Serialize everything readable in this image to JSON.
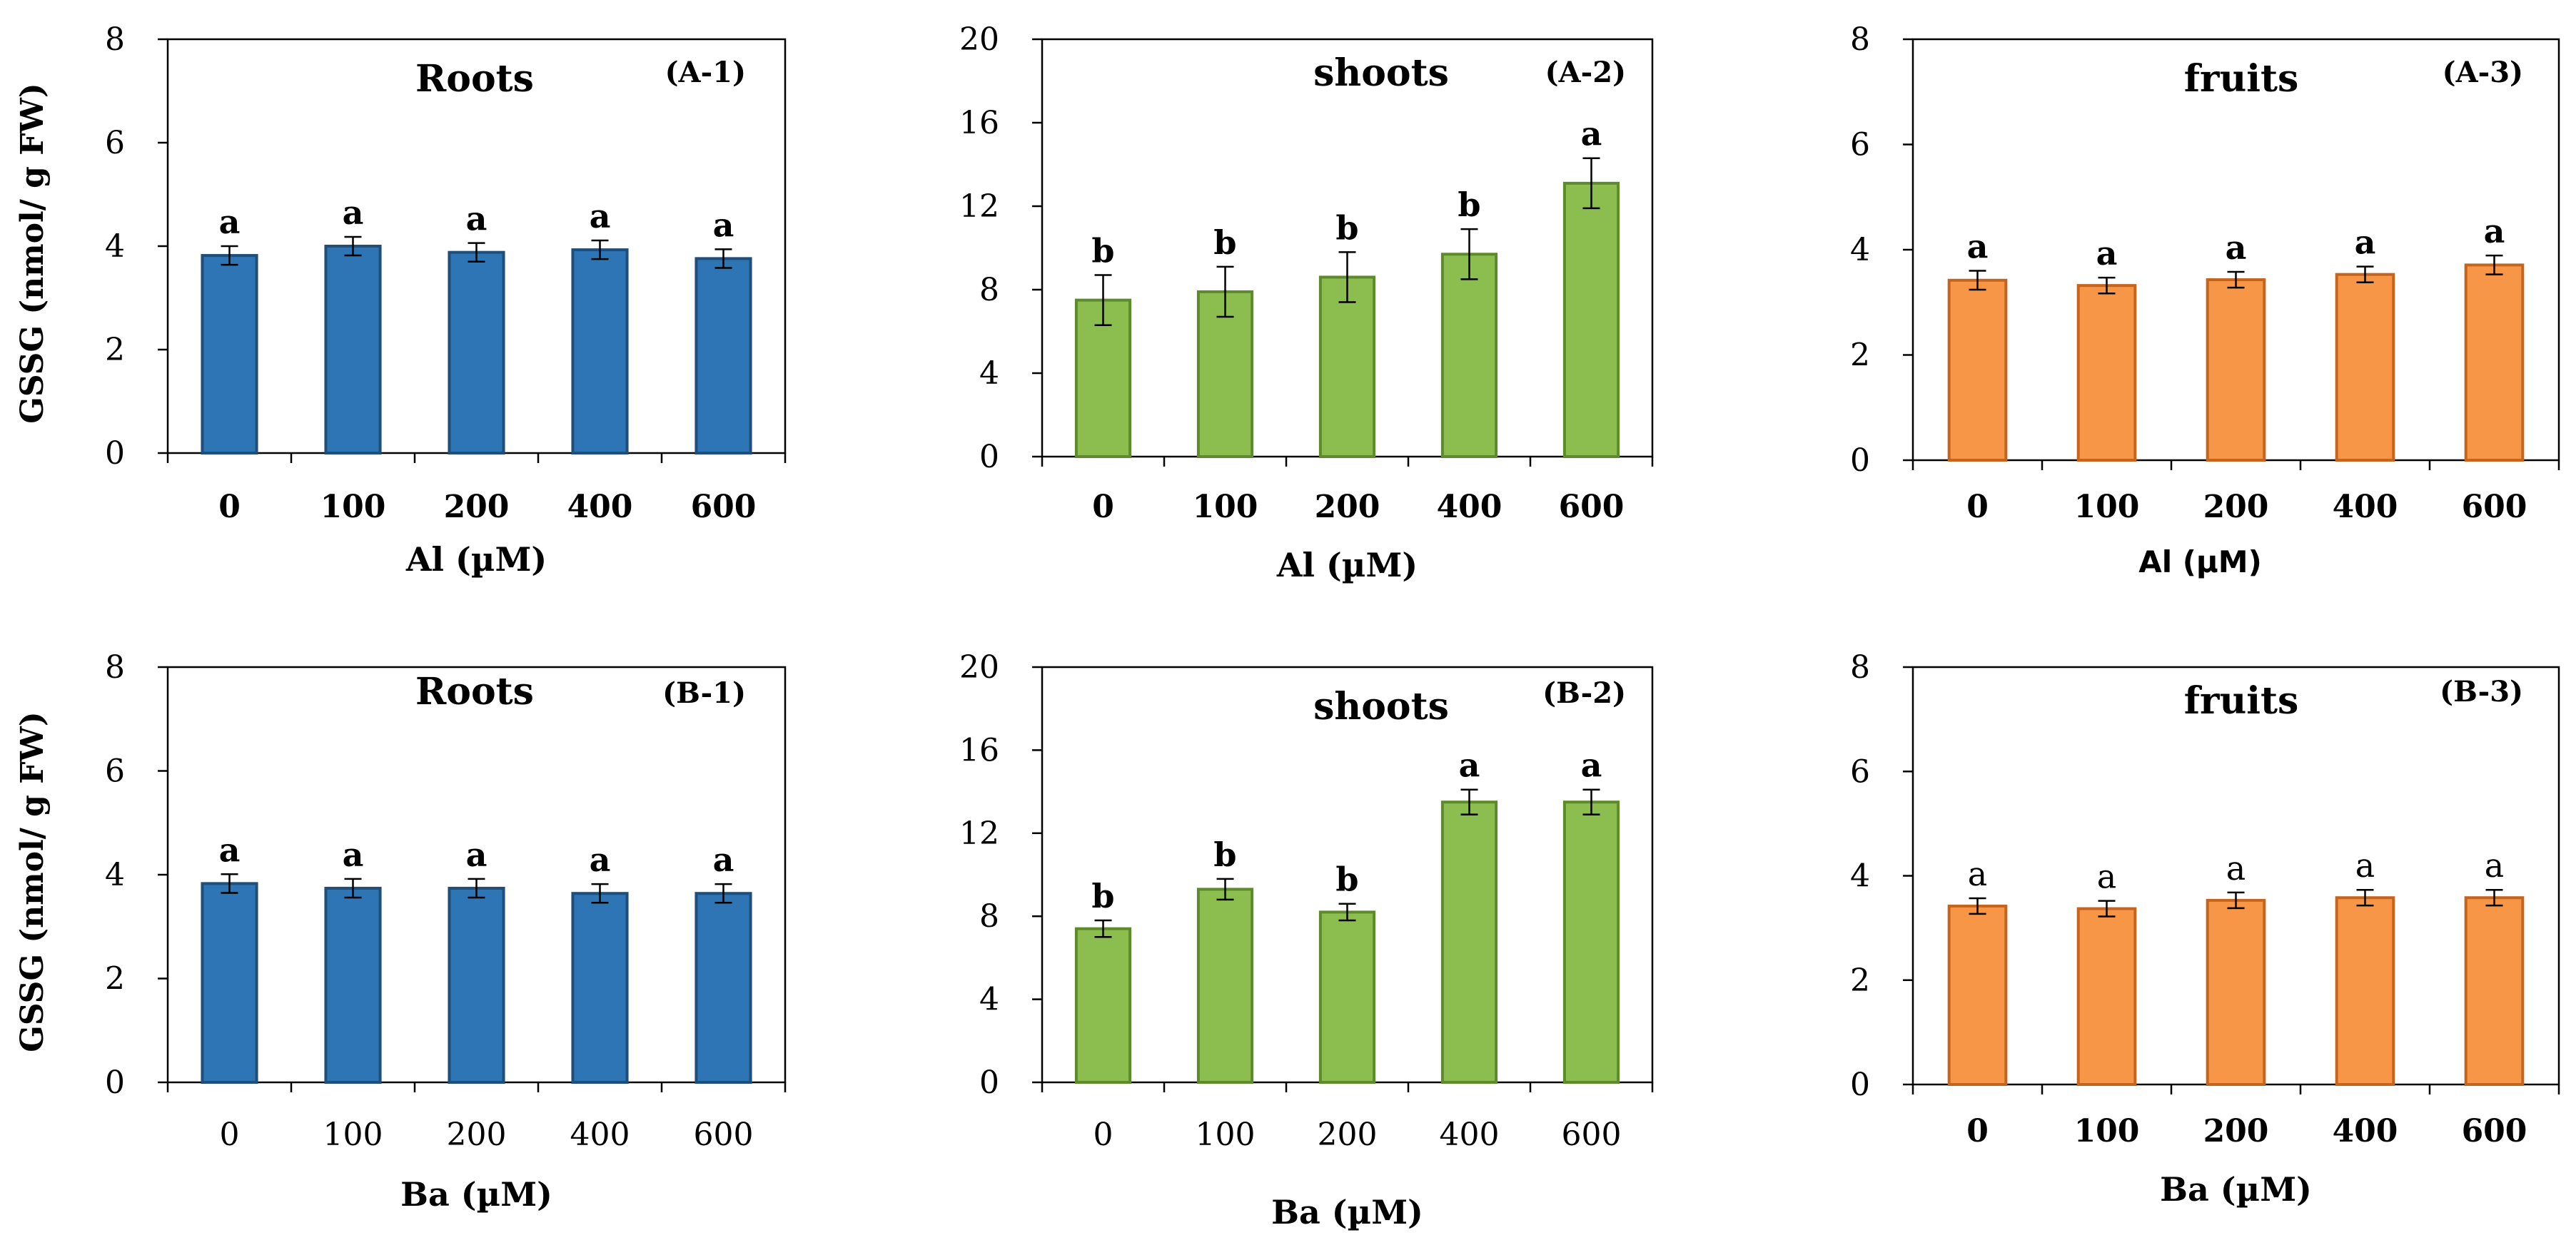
{
  "chart_data": [
    {
      "id": "A-1",
      "type": "bar",
      "title": "Roots",
      "panel_label": "(A-1)",
      "xlabel": "Al (µM)",
      "ylabel": "GSSG (nmol/ g FW)",
      "categories": [
        "0",
        "100",
        "200",
        "400",
        "600"
      ],
      "values": [
        3.82,
        4.0,
        3.88,
        3.93,
        3.76
      ],
      "errors": [
        0.18,
        0.18,
        0.18,
        0.18,
        0.18
      ],
      "letters": [
        "a",
        "a",
        "a",
        "a",
        "a"
      ],
      "ylim": [
        0,
        8
      ],
      "yticks": [
        "0",
        "2",
        "4",
        "6",
        "8"
      ],
      "color": "#2e75b6",
      "edge": "#1f4e79"
    },
    {
      "id": "A-2",
      "type": "bar",
      "title": "shoots",
      "panel_label": "(A-2)",
      "xlabel": "Al (µM)",
      "ylabel": "",
      "categories": [
        "0",
        "100",
        "200",
        "400",
        "600"
      ],
      "values": [
        7.5,
        7.9,
        8.6,
        9.7,
        13.1
      ],
      "errors": [
        1.2,
        1.2,
        1.2,
        1.2,
        1.2
      ],
      "letters": [
        "b",
        "b",
        "b",
        "b",
        "a"
      ],
      "ylim": [
        0,
        20
      ],
      "yticks": [
        "0",
        "4",
        "8",
        "12",
        "16",
        "20"
      ],
      "color": "#8bbd4f",
      "edge": "#5e8a2c"
    },
    {
      "id": "A-3",
      "type": "bar",
      "title": "fruits",
      "panel_label": "(A-3)",
      "xlabel": "Al (µM)",
      "ylabel": "",
      "categories": [
        "0",
        "100",
        "200",
        "400",
        "600"
      ],
      "values": [
        3.42,
        3.32,
        3.43,
        3.53,
        3.71
      ],
      "errors": [
        0.18,
        0.15,
        0.15,
        0.15,
        0.18
      ],
      "letters": [
        "a",
        "a",
        "a",
        "a",
        "a"
      ],
      "ylim": [
        0,
        8
      ],
      "yticks": [
        "0",
        "2",
        "4",
        "6",
        "8"
      ],
      "color": "#f79646",
      "edge": "#c5641c"
    },
    {
      "id": "B-1",
      "type": "bar",
      "title": "Roots",
      "panel_label": "(B-1)",
      "xlabel": "Ba (µM)",
      "ylabel": "GSSG (nmol/ g FW)",
      "categories": [
        "0",
        "100",
        "200",
        "400",
        "600"
      ],
      "values": [
        3.83,
        3.74,
        3.74,
        3.64,
        3.64
      ],
      "errors": [
        0.18,
        0.18,
        0.18,
        0.18,
        0.18
      ],
      "letters": [
        "a",
        "a",
        "a",
        "a",
        "a"
      ],
      "ylim": [
        0,
        8
      ],
      "yticks": [
        "0",
        "2",
        "4",
        "6",
        "8"
      ],
      "color": "#2e75b6",
      "edge": "#1f4e79"
    },
    {
      "id": "B-2",
      "type": "bar",
      "title": "shoots",
      "panel_label": "(B-2)",
      "xlabel": "Ba (µM)",
      "ylabel": "",
      "categories": [
        "0",
        "100",
        "200",
        "400",
        "600"
      ],
      "values": [
        7.4,
        9.3,
        8.2,
        13.5,
        13.5
      ],
      "errors": [
        0.4,
        0.5,
        0.4,
        0.6,
        0.6
      ],
      "letters": [
        "b",
        "b",
        "b",
        "a",
        "a"
      ],
      "ylim": [
        0,
        20
      ],
      "yticks": [
        "0",
        "4",
        "8",
        "12",
        "16",
        "20"
      ],
      "color": "#8bbd4f",
      "edge": "#5e8a2c"
    },
    {
      "id": "B-3",
      "type": "bar",
      "title": "fruits",
      "panel_label": "(B-3)",
      "xlabel": "Ba (µM)",
      "ylabel": "",
      "categories": [
        "0",
        "100",
        "200",
        "400",
        "600"
      ],
      "values": [
        3.42,
        3.37,
        3.53,
        3.58,
        3.58
      ],
      "errors": [
        0.15,
        0.15,
        0.15,
        0.15,
        0.15
      ],
      "letters": [
        "a",
        "a",
        "a",
        "a",
        "a"
      ],
      "ylim": [
        0,
        8
      ],
      "yticks": [
        "0",
        "2",
        "4",
        "6",
        "8"
      ],
      "color": "#f79646",
      "edge": "#c5641c"
    }
  ]
}
